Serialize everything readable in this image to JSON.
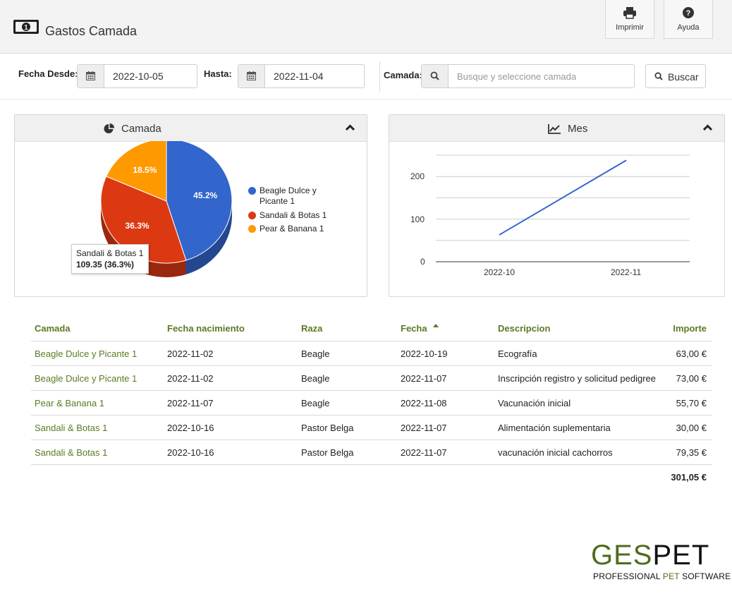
{
  "header": {
    "title": "Gastos Camada",
    "print_label": "Imprimir",
    "help_label": "Ayuda"
  },
  "filters": {
    "from_label": "Fecha Desde:",
    "from_value": "2022-10-05",
    "to_label": "Hasta:",
    "to_value": "2022-11-04",
    "litter_label": "Camada:",
    "litter_placeholder": "Busque y seleccione camada",
    "search_label": "Buscar"
  },
  "pie_panel": {
    "title": "Camada",
    "tooltip_name": "Sandali & Botas 1",
    "tooltip_value": "109.35 (36.3%)"
  },
  "line_panel": {
    "title": "Mes"
  },
  "chart_data": [
    {
      "type": "pie",
      "title": "Camada",
      "slices": [
        {
          "name": "Beagle Dulce y Picante 1",
          "value": 136.0,
          "label": "45.2%",
          "color": "#3366cc"
        },
        {
          "name": "Sandali & Botas 1",
          "value": 109.35,
          "label": "36.3%",
          "color": "#dc3912"
        },
        {
          "name": "Pear & Banana 1",
          "value": 55.7,
          "label": "18.5%",
          "color": "#ff9900"
        }
      ],
      "legend_position": "right"
    },
    {
      "type": "line",
      "title": "Mes",
      "categories": [
        "2022-10",
        "2022-11"
      ],
      "series": [
        {
          "values": [
            63.0,
            238.05
          ],
          "color": "#3366cc"
        }
      ],
      "yticks": [
        "0",
        "100",
        "200"
      ],
      "ylim": [
        0,
        250
      ],
      "grid": true
    }
  ],
  "table": {
    "columns": [
      "Camada",
      "Fecha nacimiento",
      "Raza",
      "Fecha",
      "Descripcion",
      "Importe"
    ],
    "rows": [
      [
        "Beagle Dulce y Picante 1",
        "2022-11-02",
        "Beagle",
        "2022-10-19",
        "Ecografía",
        "63,00 €"
      ],
      [
        "Beagle Dulce y Picante 1",
        "2022-11-02",
        "Beagle",
        "2022-11-07",
        "Inscripción registro y solicitud pedigree",
        "73,00 €"
      ],
      [
        "Pear & Banana 1",
        "2022-11-07",
        "Beagle",
        "2022-11-08",
        "Vacunación inicial",
        "55,70 €"
      ],
      [
        "Sandali & Botas 1",
        "2022-10-16",
        "Pastor Belga",
        "2022-11-07",
        "Alimentación suplementaria",
        "30,00 €"
      ],
      [
        "Sandali & Botas 1",
        "2022-10-16",
        "Pastor Belga",
        "2022-11-07",
        "vacunación inicial cachorros",
        "79,35 €"
      ]
    ],
    "total": "301,05 €"
  },
  "brand": {
    "part1": "GES",
    "part2": "PET",
    "sub1": "PROFESSIONAL ",
    "sub2": "PET",
    "sub3": " SOFTWARE"
  }
}
